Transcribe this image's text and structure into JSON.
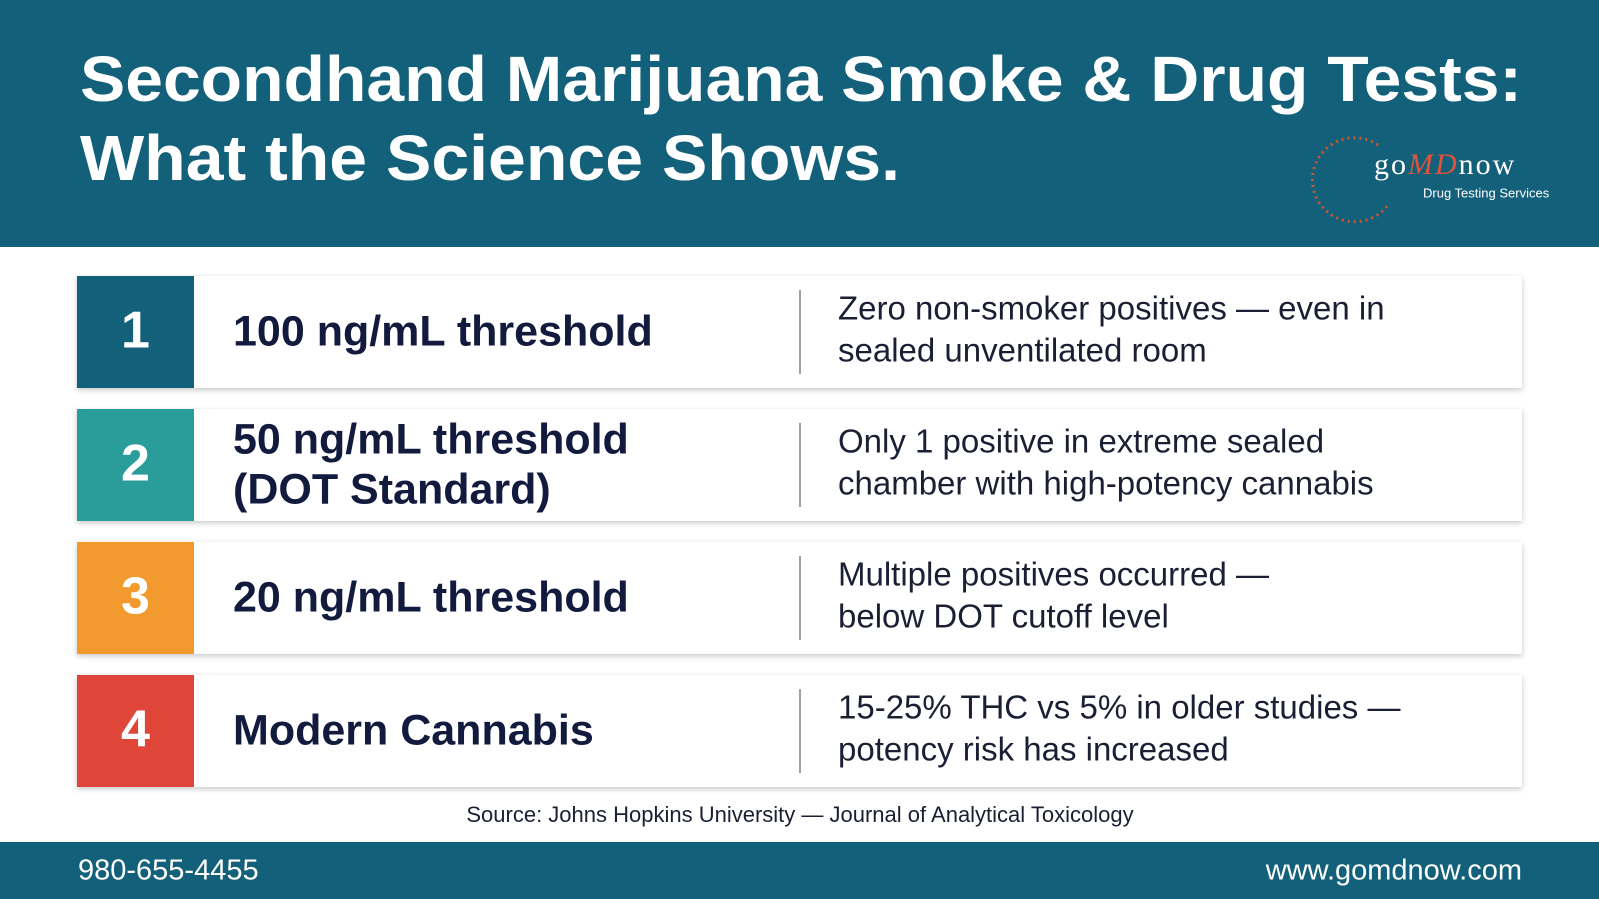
{
  "header": {
    "title_lines": [
      "Secondhand Marijuana Smoke & Drug Tests:",
      "What the Science Shows."
    ]
  },
  "logo": {
    "brand": [
      "go",
      "MD",
      "now"
    ],
    "tagline": "Drug Testing Services"
  },
  "rows": [
    {
      "number": "1",
      "heading": [
        "100 ng/mL threshold"
      ],
      "description": [
        "Zero non-smoker positives — even in",
        "sealed unventilated room"
      ]
    },
    {
      "number": "2",
      "heading": [
        "50 ng/mL threshold",
        "(DOT Standard)"
      ],
      "description": [
        "Only 1 positive in extreme sealed",
        "chamber with high-potency cannabis"
      ]
    },
    {
      "number": "3",
      "heading": [
        "20 ng/mL threshold"
      ],
      "description": [
        "Multiple positives occurred —",
        "below DOT cutoff level"
      ]
    },
    {
      "number": "4",
      "heading": [
        "Modern Cannabis"
      ],
      "description": [
        "15-25% THC vs 5% in older studies —",
        "potency risk has increased"
      ]
    }
  ],
  "source": "Source: Johns Hopkins University — Journal of Analytical Toxicology",
  "footer": {
    "phone": "980-655-4455",
    "website": "www.gomdnow.com"
  }
}
